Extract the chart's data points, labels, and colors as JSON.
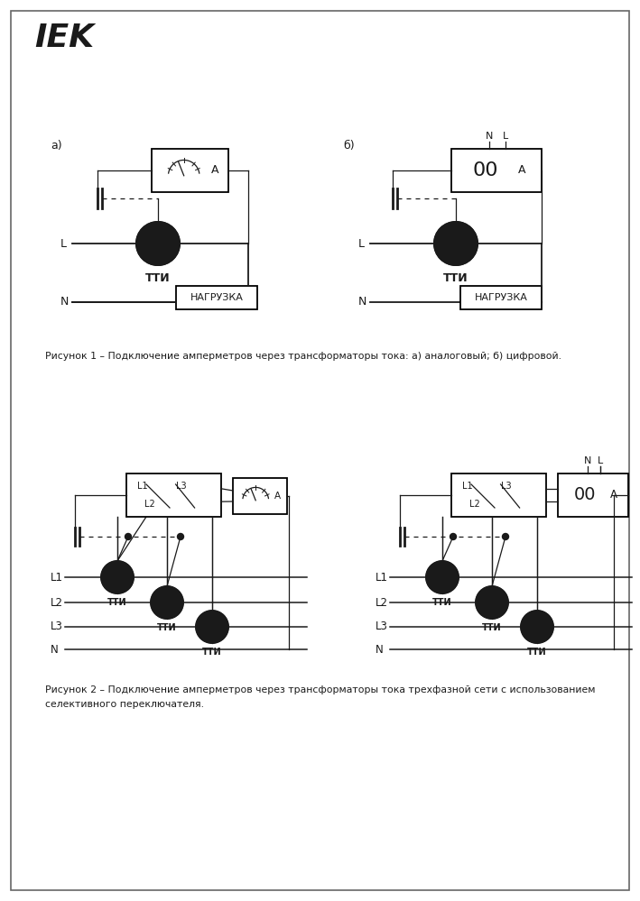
{
  "bg_color": "#ffffff",
  "fig_width": 7.09,
  "fig_height": 9.99,
  "caption1": "Рисунок 1 – Подключение амперметров через трансформаторы тока: а) аналоговый; б) цифровой.",
  "caption2_line1": "Рисунок 2 – Подключение амперметров через трансформаторы тока трехфазной сети с использованием",
  "caption2_line2": "селективного переключателя.",
  "label_a": "а)",
  "label_b": "б)",
  "label_tti": "ТТИ",
  "label_nagruzka": "НАГРУЗКА",
  "label_L": "L",
  "label_N": "N",
  "label_N_top": "N",
  "label_L_top": "L",
  "label_A": "А",
  "label_00A": "00",
  "label_L1": "L1",
  "label_L2": "L2",
  "label_L3": "L3"
}
